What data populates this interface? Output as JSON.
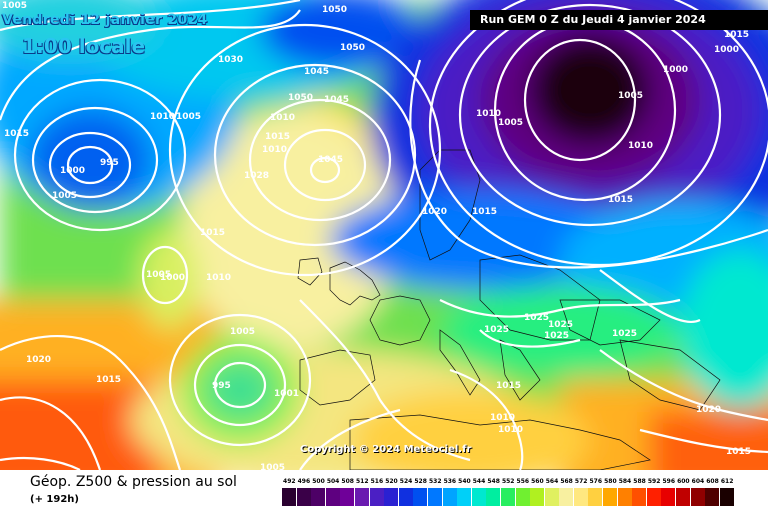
{
  "header": {
    "date": "Vendredi 12 janvier 2024",
    "time": "1:00 locale",
    "run": "Run GEM 0 Z du Jeudi 4 janvier 2024"
  },
  "copyright": "Copyright © 2024 Meteociel.fr",
  "legend": {
    "title": "Géop. Z500 & pression au sol",
    "subtitle": "(+ 192h)",
    "scale": [
      {
        "label": "492",
        "color": "#2a0030"
      },
      {
        "label": "496",
        "color": "#3a0048"
      },
      {
        "label": "500",
        "color": "#4d0066"
      },
      {
        "label": "504",
        "color": "#5e0080"
      },
      {
        "label": "508",
        "color": "#6f0099"
      },
      {
        "label": "512",
        "color": "#6a1ab0"
      },
      {
        "label": "516",
        "color": "#4b1fc4"
      },
      {
        "label": "520",
        "color": "#2a21d2"
      },
      {
        "label": "524",
        "color": "#1030e0"
      },
      {
        "label": "528",
        "color": "#0050f0"
      },
      {
        "label": "532",
        "color": "#0078ff"
      },
      {
        "label": "536",
        "color": "#00a4ff"
      },
      {
        "label": "540",
        "color": "#00d0f8"
      },
      {
        "label": "544",
        "color": "#00e8d0"
      },
      {
        "label": "548",
        "color": "#00eea0"
      },
      {
        "label": "552",
        "color": "#28ee60"
      },
      {
        "label": "556",
        "color": "#70f030"
      },
      {
        "label": "560",
        "color": "#b0f020"
      },
      {
        "label": "564",
        "color": "#e0f060"
      },
      {
        "label": "568",
        "color": "#f8f0a0"
      },
      {
        "label": "572",
        "color": "#ffe880"
      },
      {
        "label": "576",
        "color": "#ffd040"
      },
      {
        "label": "580",
        "color": "#ffa800"
      },
      {
        "label": "584",
        "color": "#ff8000"
      },
      {
        "label": "588",
        "color": "#ff5000"
      },
      {
        "label": "592",
        "color": "#ff2000"
      },
      {
        "label": "596",
        "color": "#e80000"
      },
      {
        "label": "600",
        "color": "#c00000"
      },
      {
        "label": "604",
        "color": "#900000"
      },
      {
        "label": "608",
        "color": "#500000"
      },
      {
        "label": "612",
        "color": "#1a0000"
      }
    ]
  },
  "isobar_labels": [
    "1005",
    "1050",
    "1030",
    "1050",
    "1015",
    "1010",
    "1005",
    "995",
    "1000",
    "1005",
    "1045",
    "1050",
    "1045",
    "1010",
    "1015",
    "1010",
    "1020",
    "1015",
    "1005",
    "1045",
    "1028",
    "1015",
    "1005",
    "1000",
    "1010",
    "1005",
    "1020",
    "1015",
    "995",
    "1001",
    "1025",
    "1025",
    "1025",
    "1025",
    "1025",
    "1015",
    "1010",
    "1010",
    "1020",
    "1015",
    "1005",
    "1000",
    "1005",
    "1010",
    "1015",
    "1000",
    "1015",
    "1010"
  ]
}
